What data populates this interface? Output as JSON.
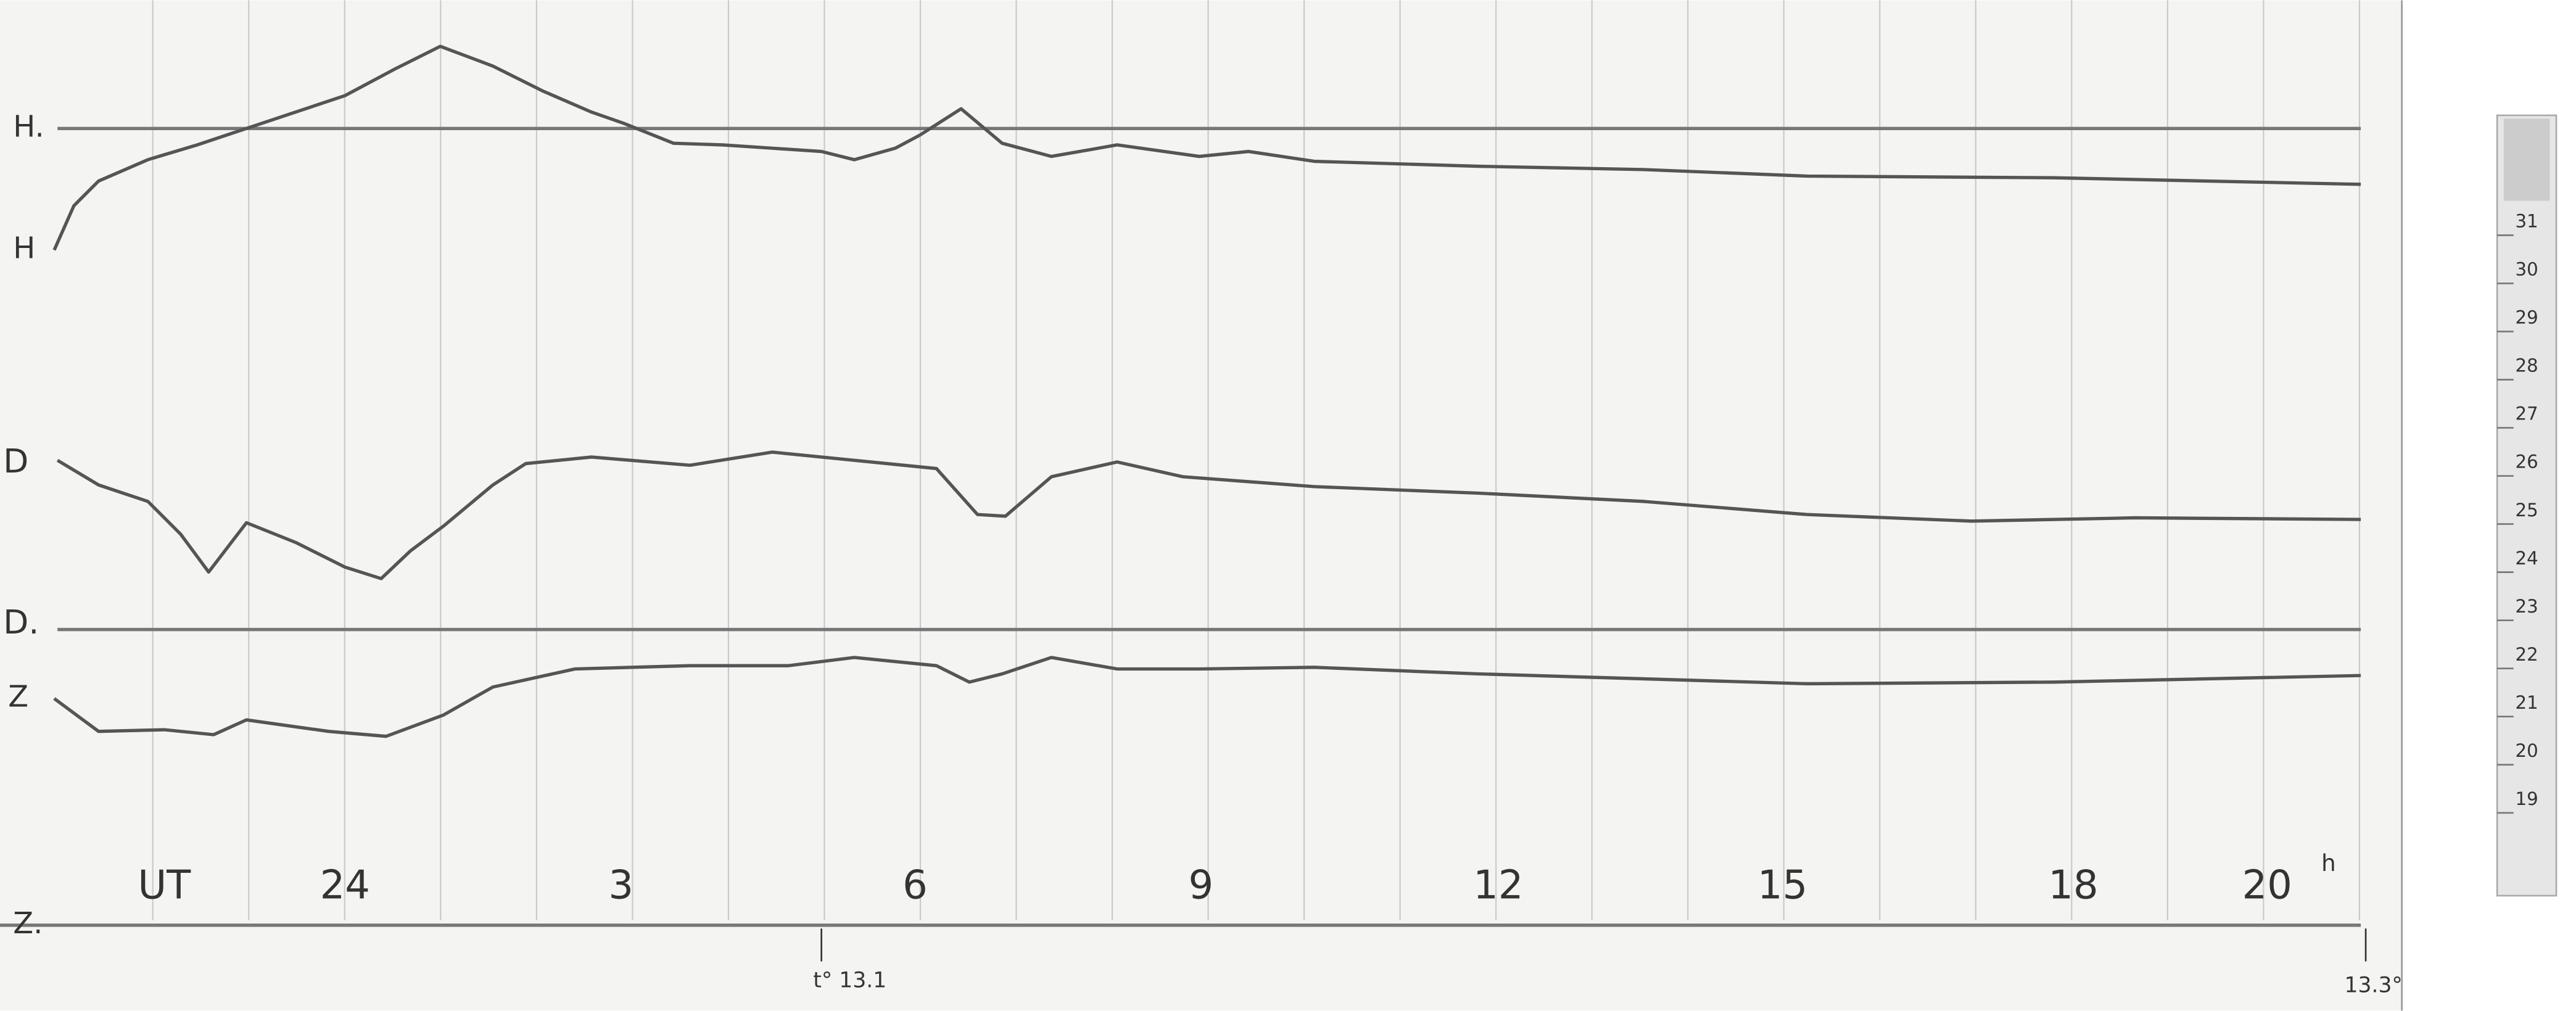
{
  "labels": {
    "h_baseline": "H.",
    "h": "H",
    "d": "D",
    "d_baseline": "D.",
    "z": "Z",
    "z_baseline": "Z."
  },
  "time_axis": {
    "label": "UT",
    "hours": [
      "24",
      "3",
      "6",
      "9",
      "12",
      "15",
      "18",
      "20"
    ],
    "unit": "h"
  },
  "temperature": {
    "start": "t° 13.1",
    "end": "13.3°"
  },
  "thermometer": [
    "31",
    "30",
    "29",
    "28",
    "27",
    "26",
    "25",
    "24",
    "23",
    "22",
    "21",
    "20",
    "19"
  ]
}
